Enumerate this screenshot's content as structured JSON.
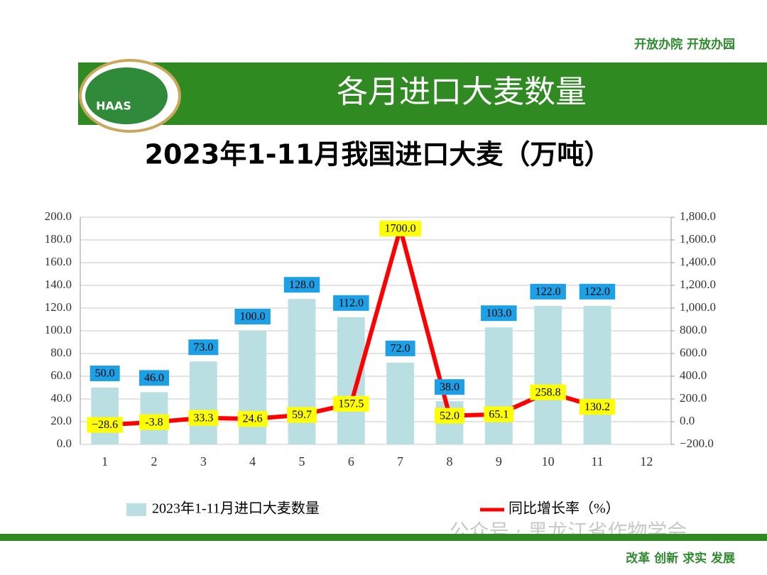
{
  "header": {
    "slogan_top": "开放办院 开放办园",
    "banner_title": "各月进口大麦数量",
    "logo_text": "HAAS",
    "slogan_bottom": "改革 创新 求实 发展",
    "watermark": "公众号 · 黑龙江省作物学会"
  },
  "chart_data": {
    "type": "bar",
    "title": "2023年1-11月我国进口大麦（万吨）",
    "categories": [
      "1",
      "2",
      "3",
      "4",
      "5",
      "6",
      "7",
      "8",
      "9",
      "10",
      "11",
      "12"
    ],
    "series": [
      {
        "name": "2023年1-11月进口大麦数量",
        "type": "bar",
        "color": "#b9dfe2",
        "values": [
          50,
          46,
          73,
          100,
          128,
          112,
          72,
          38,
          103,
          122,
          122,
          null
        ],
        "value_labels": [
          "50.0",
          "46.0",
          "73.0",
          "100.0",
          "128.0",
          "112.0",
          "72.0",
          "38.0",
          "103.0",
          "122.0",
          "122.0",
          null
        ]
      },
      {
        "name": "同比增长率（%）",
        "type": "line",
        "axis": "y2",
        "color": "#ff0000",
        "values": [
          -28.6,
          -3.8,
          33.3,
          24.6,
          59.7,
          157.5,
          1700,
          52,
          65.1,
          258.8,
          130.2,
          null
        ],
        "value_labels": [
          "−28.6",
          "-3.8",
          "33.3",
          "24.6",
          "59.7",
          "157.5",
          "1700.0",
          "52.0",
          "65.1",
          "258.8",
          "130.2",
          null
        ]
      }
    ],
    "ylim": [
      0,
      200
    ],
    "yticks": [
      {
        "value": 0,
        "label": "0.0"
      },
      {
        "value": 20,
        "label": "20.0"
      },
      {
        "value": 40,
        "label": "40.0"
      },
      {
        "value": 60,
        "label": "60.0"
      },
      {
        "value": 80,
        "label": "80.0"
      },
      {
        "value": 100,
        "label": "100.0"
      },
      {
        "value": 120,
        "label": "120.0"
      },
      {
        "value": 140,
        "label": "140.0"
      },
      {
        "value": 160,
        "label": "160.0"
      },
      {
        "value": 180,
        "label": "180.0"
      },
      {
        "value": 200,
        "label": "200.0"
      }
    ],
    "y2lim": [
      -200,
      1800
    ],
    "y2ticks": [
      {
        "value": -200,
        "label": "−200.0"
      },
      {
        "value": 0,
        "label": "0.0"
      },
      {
        "value": 200,
        "label": "200.0"
      },
      {
        "value": 400,
        "label": "400.0"
      },
      {
        "value": 600,
        "label": "600.0"
      },
      {
        "value": 800,
        "label": "800.0"
      },
      {
        "value": 1000,
        "label": "1,000.0"
      },
      {
        "value": 1200,
        "label": "1,200.0"
      },
      {
        "value": 1400,
        "label": "1,400.0"
      },
      {
        "value": 1600,
        "label": "1,600.0"
      },
      {
        "value": 1800,
        "label": "1,800.0"
      }
    ],
    "grid": true
  }
}
